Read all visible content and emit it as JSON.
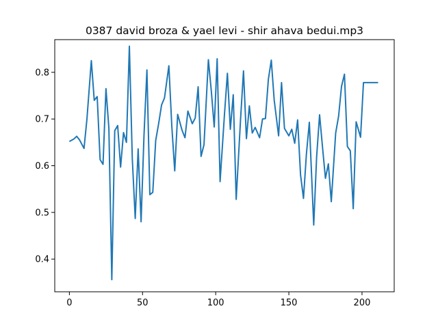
{
  "chart_data": {
    "type": "line",
    "title": "0387 david broza & yael levi - shir ahava bedui.mp3",
    "xlabel": "",
    "ylabel": "",
    "xlim": [
      -10,
      222
    ],
    "ylim": [
      0.33,
      0.87
    ],
    "xticks": [
      0,
      50,
      100,
      150,
      200
    ],
    "yticks": [
      0.4,
      0.5,
      0.6,
      0.7,
      0.8
    ],
    "ytick_labels": [
      "0.4",
      "0.5",
      "0.6",
      "0.7",
      "0.8"
    ],
    "grid": false,
    "legend": "none",
    "series": [
      {
        "color": "#1f77b4",
        "x": [
          0,
          3,
          5,
          7,
          10,
          12,
          15,
          17,
          19,
          21,
          23,
          25,
          27,
          29,
          31,
          33,
          35,
          37,
          39,
          41,
          43,
          45,
          47,
          49,
          51,
          53,
          55,
          57,
          59,
          61,
          63,
          65,
          68,
          70,
          72,
          74,
          77,
          79,
          81,
          84,
          86,
          88,
          90,
          92,
          95,
          97,
          99,
          101,
          103,
          106,
          108,
          110,
          112,
          114,
          117,
          119,
          121,
          123,
          125,
          127,
          130,
          132,
          134,
          136,
          138,
          140,
          143,
          145,
          147,
          150,
          152,
          154,
          156,
          158,
          160,
          162,
          164,
          167,
          169,
          171,
          173,
          175,
          177,
          179,
          182,
          184,
          186,
          188,
          190,
          192,
          194,
          196,
          199,
          201,
          203,
          205,
          207,
          209,
          211
        ],
        "values": [
          0.652,
          0.657,
          0.663,
          0.655,
          0.637,
          0.7,
          0.825,
          0.74,
          0.748,
          0.613,
          0.603,
          0.765,
          0.68,
          0.356,
          0.675,
          0.686,
          0.597,
          0.671,
          0.65,
          0.856,
          0.615,
          0.487,
          0.636,
          0.48,
          0.665,
          0.805,
          0.538,
          0.543,
          0.654,
          0.69,
          0.73,
          0.745,
          0.814,
          0.685,
          0.589,
          0.71,
          0.676,
          0.66,
          0.717,
          0.69,
          0.702,
          0.769,
          0.62,
          0.645,
          0.827,
          0.76,
          0.683,
          0.829,
          0.566,
          0.71,
          0.798,
          0.678,
          0.752,
          0.528,
          0.7,
          0.803,
          0.658,
          0.728,
          0.67,
          0.682,
          0.66,
          0.7,
          0.701,
          0.785,
          0.826,
          0.74,
          0.664,
          0.778,
          0.68,
          0.664,
          0.678,
          0.648,
          0.698,
          0.58,
          0.53,
          0.625,
          0.693,
          0.473,
          0.62,
          0.709,
          0.64,
          0.573,
          0.604,
          0.523,
          0.67,
          0.706,
          0.77,
          0.796,
          0.641,
          0.632,
          0.508,
          0.694,
          0.661,
          0.778,
          0.778,
          0.778,
          0.778,
          0.778,
          0.778
        ]
      }
    ]
  }
}
